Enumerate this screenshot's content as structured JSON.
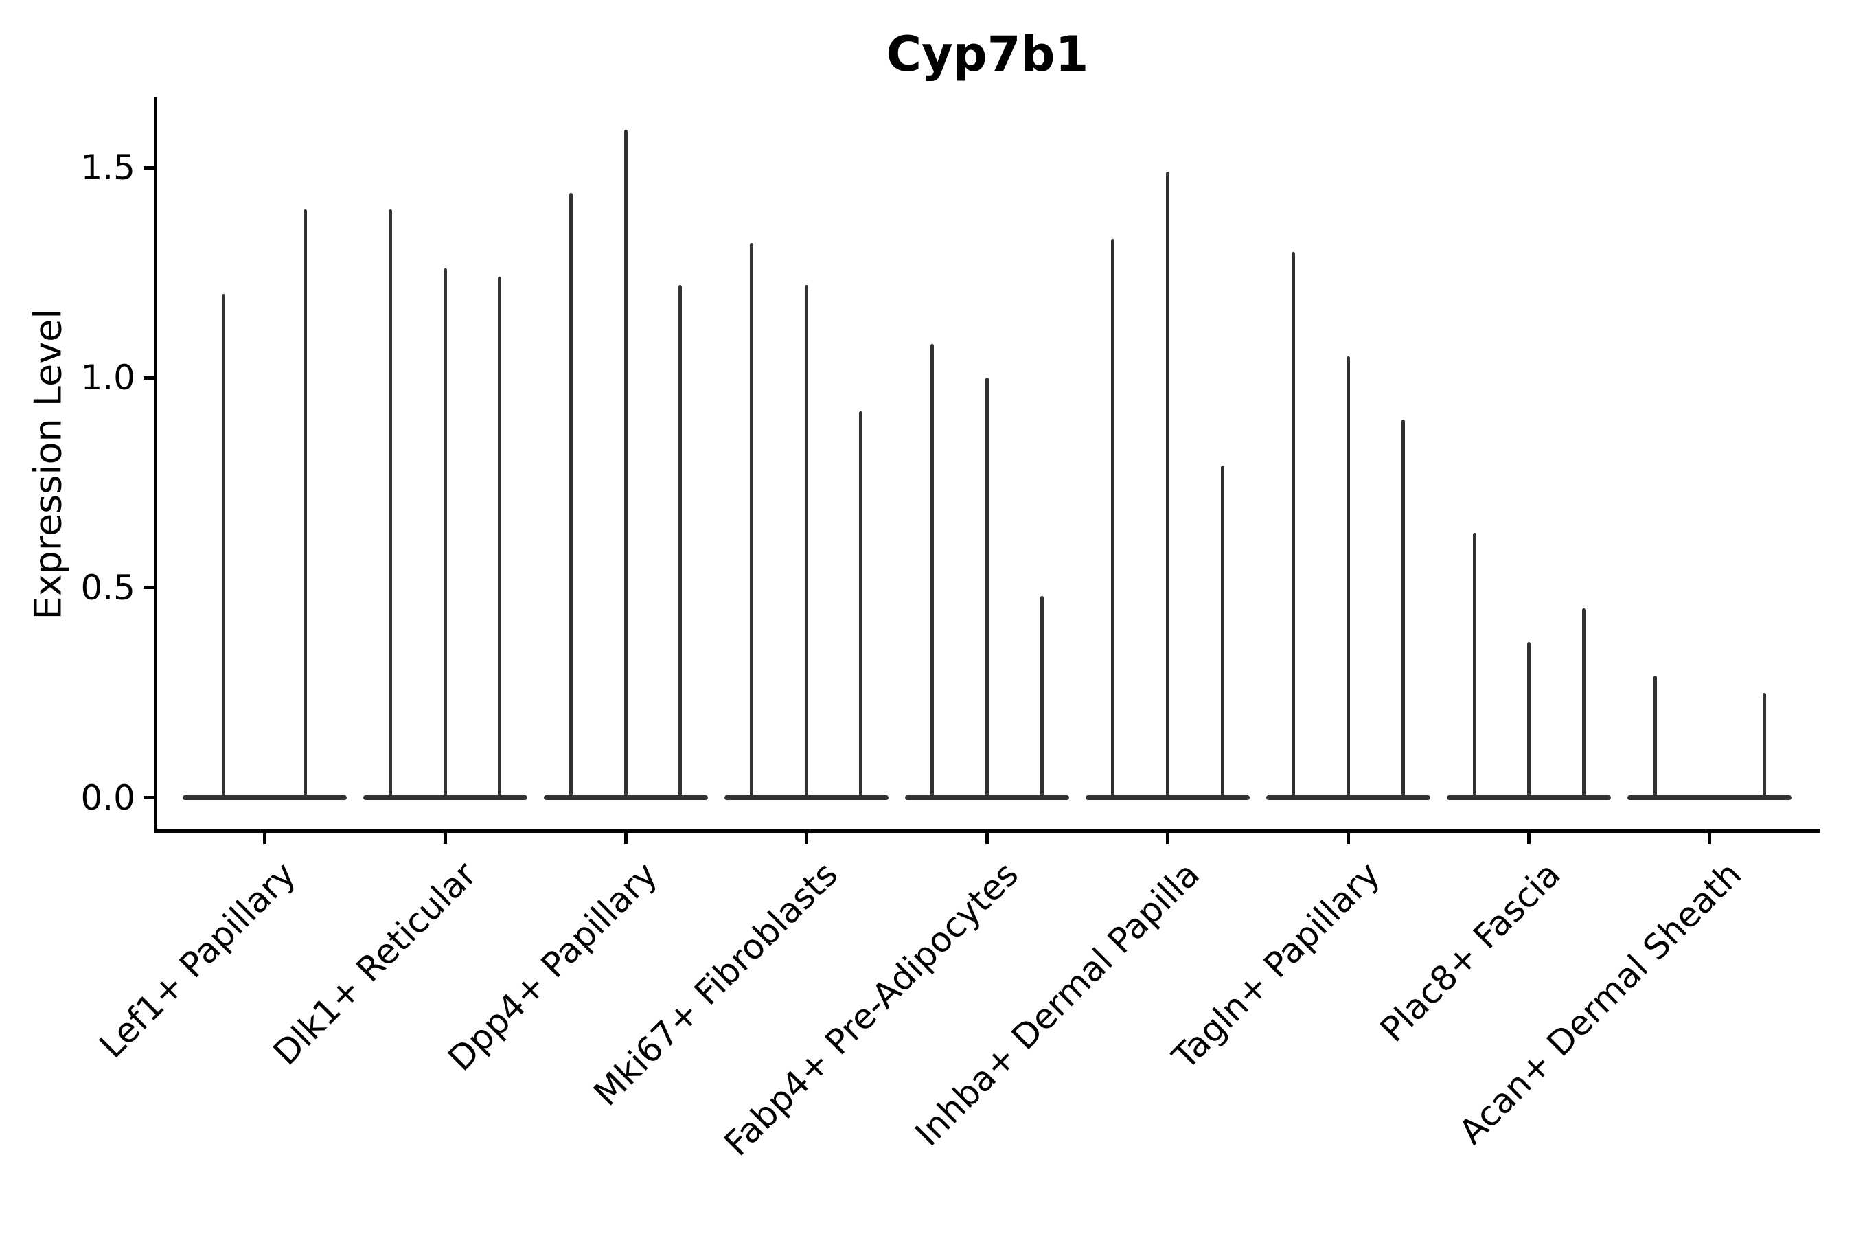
{
  "title": "Cyp7b1",
  "y_axis": {
    "label": "Expression Level",
    "tick_labels": [
      "0.0",
      "0.5",
      "1.0",
      "1.5"
    ]
  },
  "chart_data": {
    "type": "violin",
    "title": "Cyp7b1",
    "xlabel": "",
    "ylabel": "Expression Level",
    "ylim": [
      -0.08,
      1.67
    ],
    "yticks": [
      0.0,
      0.5,
      1.0,
      1.5
    ],
    "grid": false,
    "legend": null,
    "violin_color": "#323232",
    "axis_color": "#000000",
    "style_note": "Zero-inflated single-cell expression violins: each violin is a wide flat lens at 0 plus a thin vertical spike up to the maximum expression value; groups of adjacent sample violins share a merged flat base.",
    "categories": [
      "Lef1+ Papillary",
      "Dlk1+ Reticular",
      "Dpp4+ Papillary",
      "Mki67+ Fibroblasts",
      "Fabp4+ Pre-Adipocytes",
      "Inhba+ Dermal Papilla",
      "Tagln+ Papillary",
      "Plac8+ Fascia",
      "Acan+ Dermal Sheath"
    ],
    "groups": [
      {
        "category": "Lef1+ Papillary",
        "violin_max_values": [
          1.2,
          1.4
        ]
      },
      {
        "category": "Dlk1+ Reticular",
        "violin_max_values": [
          1.4,
          1.26,
          1.24
        ]
      },
      {
        "category": "Dpp4+ Papillary",
        "violin_max_values": [
          1.44,
          1.59,
          1.22
        ]
      },
      {
        "category": "Mki67+ Fibroblasts",
        "violin_max_values": [
          1.32,
          1.22,
          0.92
        ]
      },
      {
        "category": "Fabp4+ Pre-Adipocytes",
        "violin_max_values": [
          1.08,
          1.0,
          0.48
        ]
      },
      {
        "category": "Inhba+ Dermal Papilla",
        "violin_max_values": [
          1.33,
          1.49,
          0.79
        ]
      },
      {
        "category": "Tagln+ Papillary",
        "violin_max_values": [
          1.3,
          1.05,
          0.9
        ]
      },
      {
        "category": "Plac8+ Fascia",
        "violin_max_values": [
          0.63,
          0.37,
          0.45
        ]
      },
      {
        "category": "Acan+ Dermal Sheath",
        "violin_max_values": [
          0.29,
          0.0,
          0.25
        ]
      }
    ]
  }
}
